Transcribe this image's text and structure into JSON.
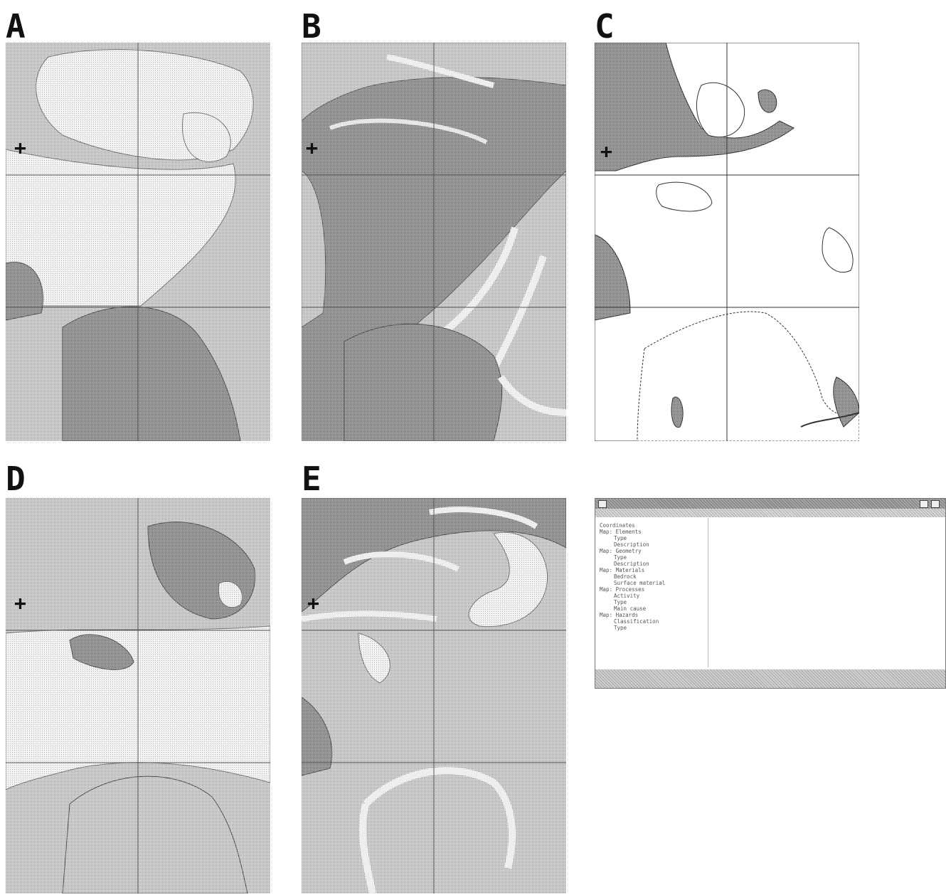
{
  "panels": [
    {
      "id": "A",
      "label": "A"
    },
    {
      "id": "B",
      "label": "B"
    },
    {
      "id": "C",
      "label": "C"
    },
    {
      "id": "D",
      "label": "D"
    },
    {
      "id": "E",
      "label": "E"
    }
  ],
  "colors": {
    "light_fill": "#e6e6e6",
    "medium_fill": "#bdbdbd",
    "dark_fill": "#8c8c8c",
    "grid_line": "#555555",
    "outline": "#333333"
  },
  "marker_symbol": "+",
  "info_window": {
    "title": "",
    "attributes": [
      {
        "key": "Coordinates",
        "value": "",
        "indent": 0
      },
      {
        "key": "Map: Elements",
        "value": "",
        "indent": 0
      },
      {
        "key": "Type",
        "value": "",
        "indent": 1
      },
      {
        "key": "Description",
        "value": "",
        "indent": 1
      },
      {
        "key": "Map: Geometry",
        "value": "",
        "indent": 0
      },
      {
        "key": "Type",
        "value": "",
        "indent": 1
      },
      {
        "key": "Description",
        "value": "",
        "indent": 1
      },
      {
        "key": "Map: Materials",
        "value": "",
        "indent": 0
      },
      {
        "key": "Bedrock",
        "value": "",
        "indent": 1
      },
      {
        "key": "Surface material",
        "value": "",
        "indent": 1
      },
      {
        "key": "Map: Processes",
        "value": "",
        "indent": 0
      },
      {
        "key": "Activity",
        "value": "",
        "indent": 1
      },
      {
        "key": "Type",
        "value": "",
        "indent": 1
      },
      {
        "key": "Main cause",
        "value": "",
        "indent": 1
      },
      {
        "key": "Map: Hazards",
        "value": "",
        "indent": 0
      },
      {
        "key": "Classification",
        "value": "",
        "indent": 1
      },
      {
        "key": "Type",
        "value": "",
        "indent": 1
      }
    ]
  }
}
